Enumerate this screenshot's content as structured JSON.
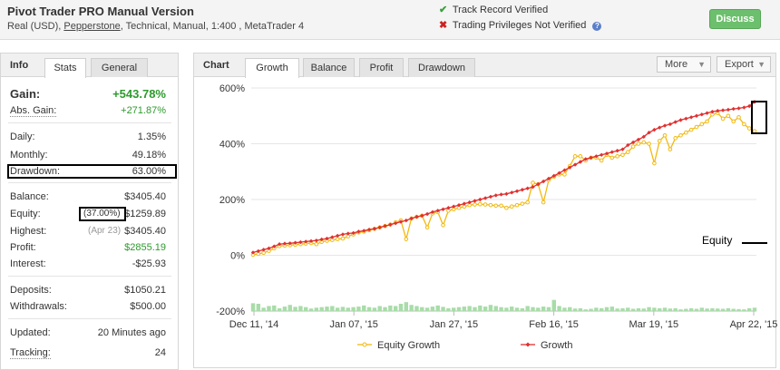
{
  "header": {
    "title": "Pivot Trader PRO Manual Version",
    "account_type": "Real (USD),",
    "broker": "Pepperstone",
    "details": ", Technical, Manual, 1:400 , MetaTrader 4",
    "track_record": "Track Record Verified",
    "trading_privileges": "Trading Privileges Not Verified",
    "qmark": "?",
    "discuss_label": "Discuss"
  },
  "left_panel": {
    "header": "Info",
    "tabs": [
      "Stats",
      "General"
    ],
    "gain_label": "Gain:",
    "gain_value": "+543.78%",
    "abs_gain_label": "Abs. Gain:",
    "abs_gain_value": "+271.87%",
    "daily_label": "Daily:",
    "daily_value": "1.35%",
    "monthly_label": "Monthly:",
    "monthly_value": "49.18%",
    "drawdown_label": "Drawdown:",
    "drawdown_value": "63.00%",
    "balance_label": "Balance:",
    "balance_value": "$3405.40",
    "equity_label": "Equity:",
    "equity_pct": "(37.00%)",
    "equity_value": "$1259.89",
    "highest_label": "Highest:",
    "highest_date": "(Apr 23)",
    "highest_value": "$3405.40",
    "profit_label": "Profit:",
    "profit_value": "$2855.19",
    "interest_label": "Interest:",
    "interest_value": "-$25.93",
    "deposits_label": "Deposits:",
    "deposits_value": "$1050.21",
    "withdrawals_label": "Withdrawals:",
    "withdrawals_value": "$500.00",
    "updated_label": "Updated:",
    "updated_value": "20 Minutes ago",
    "tracking_label": "Tracking:",
    "tracking_value": "24"
  },
  "chart_panel": {
    "header": "Chart",
    "tabs": [
      "Growth",
      "Balance",
      "Profit",
      "Drawdown"
    ],
    "active_tab": "Growth",
    "more_label": "More",
    "export_label": "Export"
  },
  "annotation": {
    "equity_label": "Equity"
  },
  "colors": {
    "growth": "#e03030",
    "equity_growth": "#f2b90f",
    "volume_bars": "#a8dca8",
    "positive": "#2d9a2d"
  },
  "chart_data": {
    "type": "line",
    "ylim": [
      -200,
      600
    ],
    "y_ticks": [
      "600%",
      "400%",
      "200%",
      "0%",
      "-200%"
    ],
    "x_ticks": [
      "Dec 11, '14",
      "Jan 07, '15",
      "Jan 27, '15",
      "Feb 16, '15",
      "Mar 19, '15",
      "Apr 22, '15"
    ],
    "series": [
      {
        "name": "Equity Growth",
        "values": [
          2,
          5,
          9,
          16,
          25,
          33,
          35,
          36,
          38,
          40,
          42,
          44,
          40,
          48,
          52,
          55,
          58,
          60,
          68,
          75,
          82,
          85,
          90,
          95,
          100,
          105,
          110,
          118,
          125,
          58,
          132,
          138,
          142,
          100,
          150,
          155,
          108,
          160,
          165,
          170,
          175,
          180,
          182,
          183,
          182,
          180,
          178,
          178,
          170,
          175,
          180,
          185,
          190,
          260,
          255,
          190,
          270,
          282,
          290,
          290,
          320,
          355,
          355,
          340,
          350,
          350,
          340,
          360,
          350,
          355,
          360,
          370,
          390,
          400,
          405,
          400,
          330,
          410,
          430,
          380,
          420,
          430,
          440,
          450,
          460,
          470,
          480,
          505,
          510,
          490,
          500,
          480,
          495,
          470,
          455,
          445
        ]
      },
      {
        "name": "Growth",
        "values": [
          10,
          15,
          20,
          25,
          32,
          40,
          42,
          43,
          45,
          47,
          49,
          51,
          53,
          57,
          60,
          65,
          70,
          75,
          78,
          80,
          85,
          88,
          92,
          95,
          100,
          105,
          110,
          115,
          120,
          125,
          132,
          138,
          142,
          148,
          155,
          160,
          165,
          170,
          175,
          180,
          185,
          190,
          195,
          200,
          205,
          210,
          215,
          218,
          220,
          225,
          230,
          235,
          240,
          245,
          255,
          265,
          275,
          285,
          295,
          305,
          315,
          325,
          335,
          345,
          350,
          355,
          360,
          365,
          370,
          375,
          380,
          395,
          405,
          415,
          425,
          440,
          450,
          458,
          465,
          470,
          478,
          485,
          490,
          495,
          500,
          505,
          510,
          515,
          518,
          520,
          522,
          525,
          527,
          530,
          535,
          550
        ]
      }
    ],
    "volume_bars": [
      28,
      26,
      12,
      18,
      20,
      10,
      16,
      22,
      15,
      18,
      14,
      9,
      12,
      14,
      16,
      18,
      12,
      15,
      12,
      14,
      16,
      20,
      14,
      12,
      18,
      14,
      20,
      18,
      26,
      32,
      22,
      18,
      14,
      12,
      16,
      20,
      15,
      10,
      12,
      14,
      16,
      18,
      14,
      20,
      16,
      22,
      18,
      14,
      12,
      16,
      12,
      10,
      18,
      14,
      12,
      16,
      14,
      40,
      18,
      12,
      14,
      9,
      10,
      6,
      8,
      12,
      10,
      14,
      16,
      9,
      10,
      12,
      8,
      10,
      9,
      14,
      12,
      10,
      12,
      9,
      10,
      6,
      8,
      10,
      8,
      12,
      9,
      10,
      9,
      8,
      10,
      8,
      7,
      6,
      10,
      12
    ]
  }
}
